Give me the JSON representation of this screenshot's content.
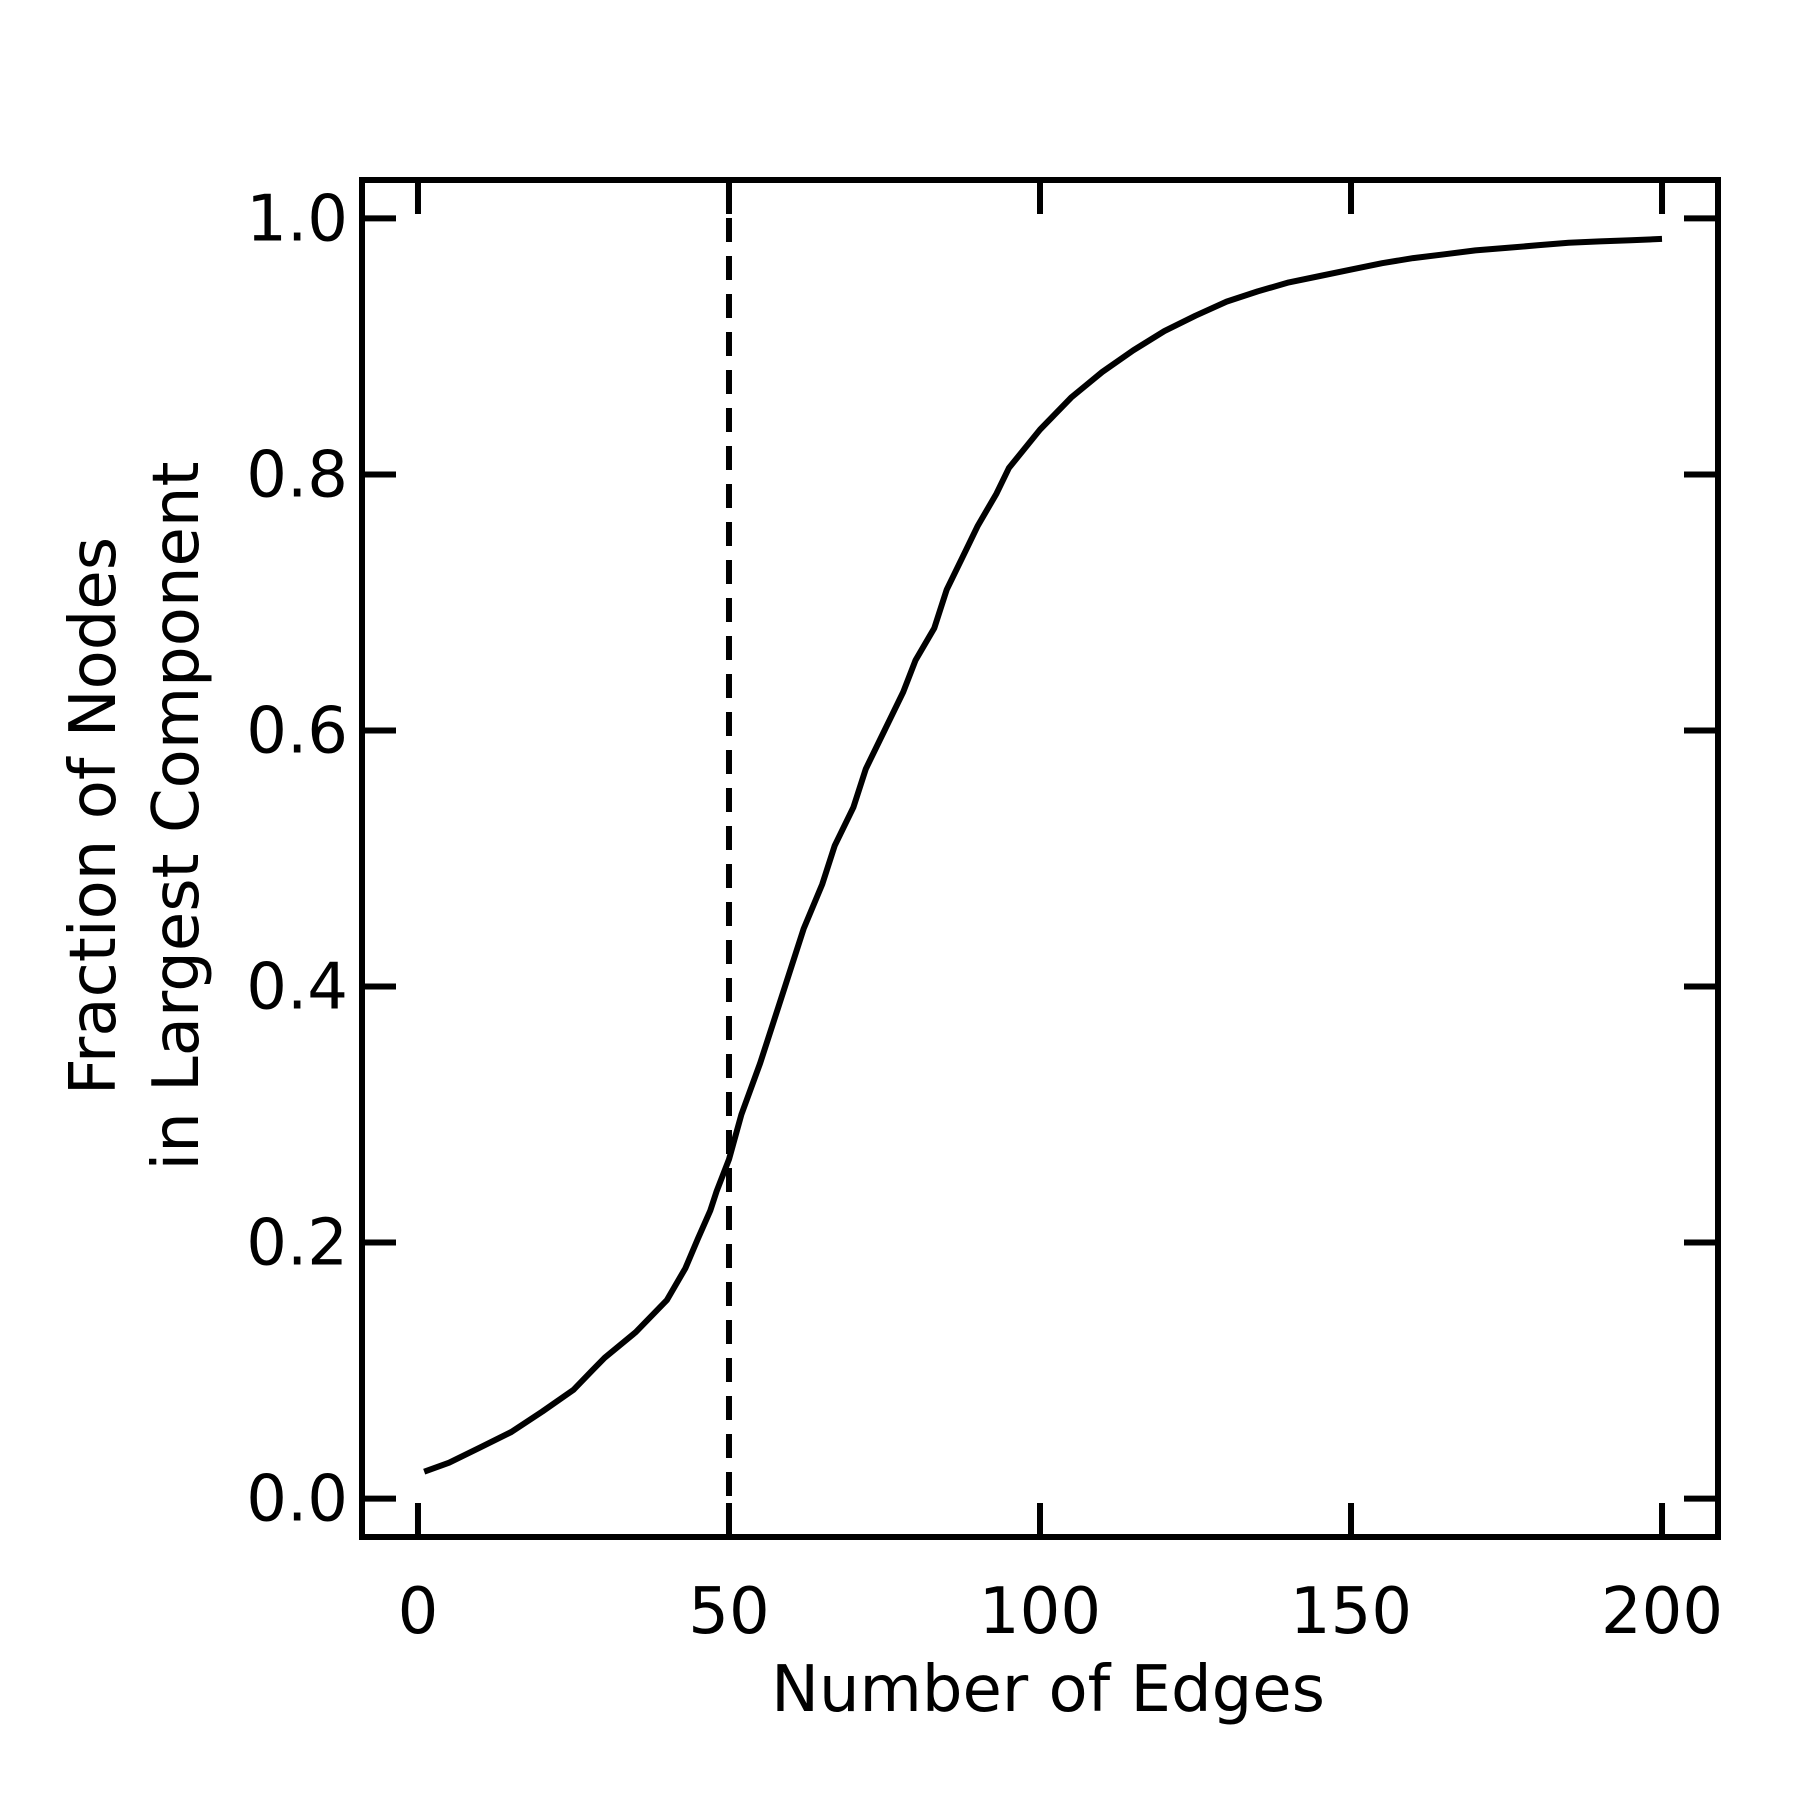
{
  "chart_data": {
    "type": "line",
    "title": "",
    "xlabel": "Number of Edges",
    "ylabel_lines": [
      "Fraction of Nodes",
      "in Largest Component"
    ],
    "xlim": [
      -9,
      209
    ],
    "ylim": [
      -0.03,
      1.03
    ],
    "xticks": [
      0,
      50,
      100,
      150,
      200
    ],
    "xtick_labels": [
      "0",
      "50",
      "100",
      "150",
      "200"
    ],
    "yticks": [
      0.0,
      0.2,
      0.4,
      0.6,
      0.8,
      1.0
    ],
    "ytick_labels": [
      "0.0",
      "0.2",
      "0.4",
      "0.6",
      "0.8",
      "1.0"
    ],
    "grid": false,
    "colors": {
      "line": "#000000",
      "frame": "#000000",
      "background": "#ffffff"
    },
    "vertical_line": {
      "x": 50,
      "style": "dashed"
    },
    "series": [
      {
        "x": [
          1,
          5,
          10,
          15,
          20,
          25,
          28,
          30,
          35,
          40,
          43,
          45,
          47,
          48,
          50,
          52,
          55,
          58,
          60,
          62,
          65,
          67,
          70,
          72,
          75,
          78,
          80,
          83,
          85,
          88,
          90,
          93,
          95,
          100,
          105,
          110,
          115,
          120,
          125,
          130,
          135,
          140,
          145,
          150,
          155,
          160,
          165,
          170,
          175,
          180,
          185,
          190,
          195,
          200
        ],
        "y": [
          0.021,
          0.028,
          0.04,
          0.052,
          0.068,
          0.085,
          0.1,
          0.11,
          0.13,
          0.155,
          0.18,
          0.203,
          0.225,
          0.24,
          0.265,
          0.3,
          0.34,
          0.385,
          0.415,
          0.445,
          0.48,
          0.51,
          0.54,
          0.57,
          0.6,
          0.63,
          0.655,
          0.68,
          0.71,
          0.74,
          0.76,
          0.785,
          0.805,
          0.835,
          0.86,
          0.88,
          0.897,
          0.912,
          0.924,
          0.935,
          0.943,
          0.95,
          0.955,
          0.96,
          0.965,
          0.969,
          0.972,
          0.975,
          0.977,
          0.979,
          0.981,
          0.982,
          0.983,
          0.984
        ]
      }
    ]
  }
}
